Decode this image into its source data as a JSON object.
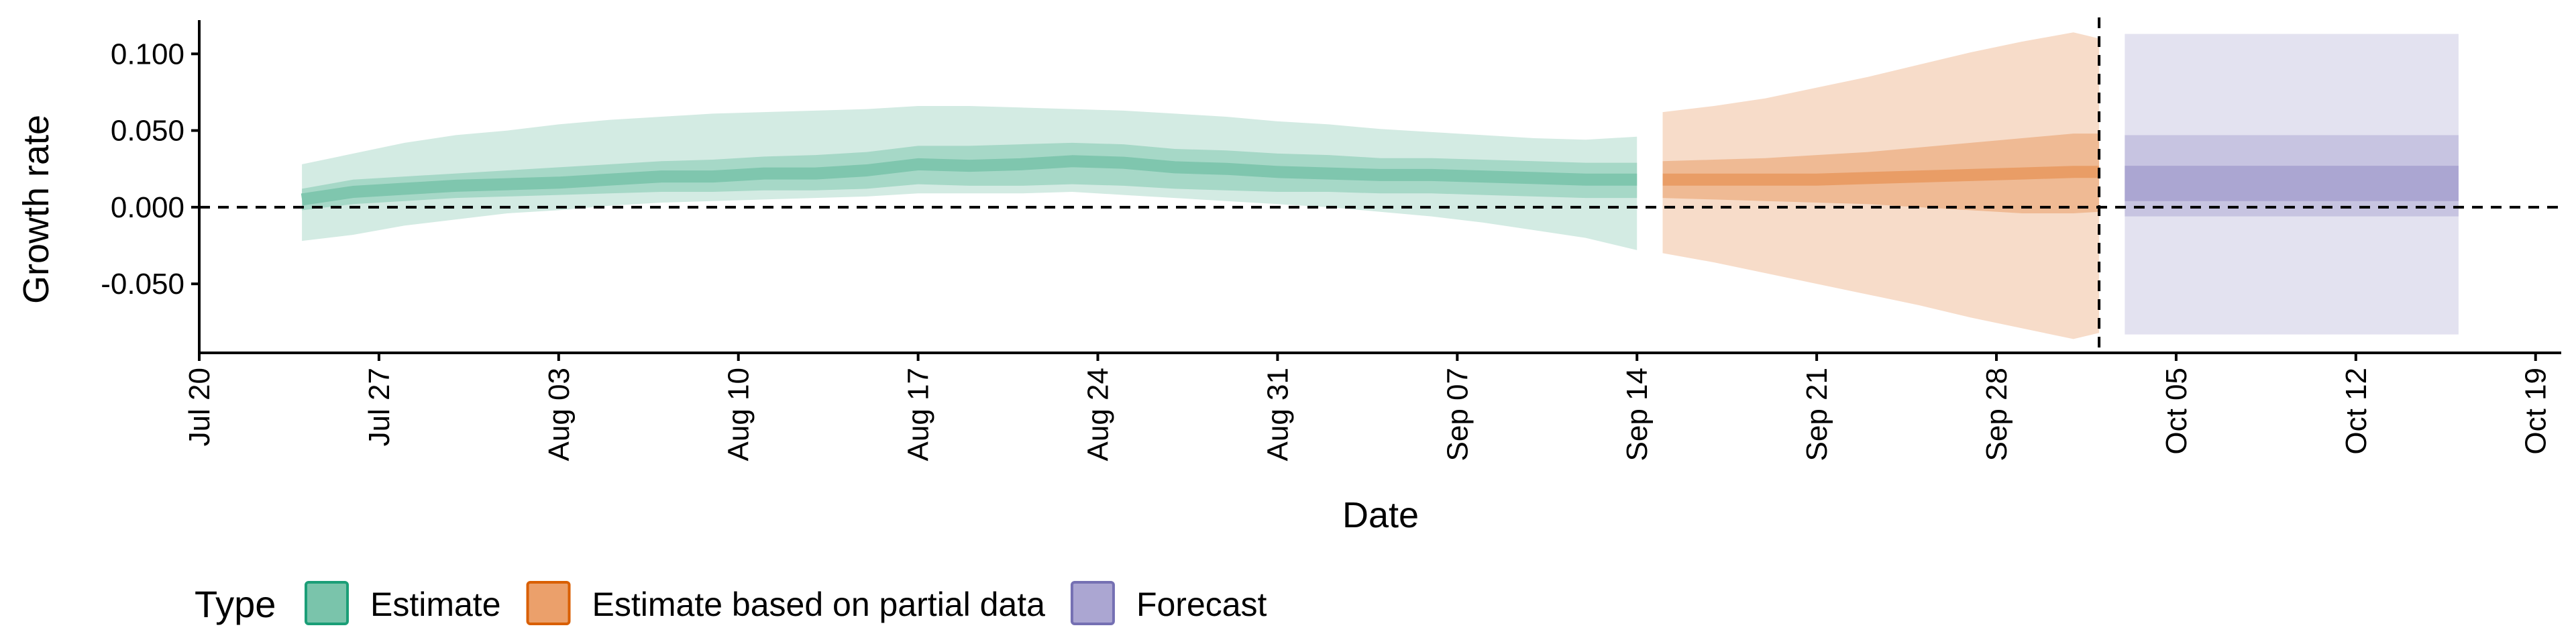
{
  "chart_data": {
    "type": "area",
    "xlabel": "Date",
    "ylabel": "Growth rate",
    "ylim": [
      -0.095,
      0.122
    ],
    "y_ticks": [
      {
        "value": 0.1,
        "label": "0.100"
      },
      {
        "value": 0.05,
        "label": "0.050"
      },
      {
        "value": 0.0,
        "label": "0.000"
      },
      {
        "value": -0.05,
        "label": "-0.050"
      }
    ],
    "xlim": [
      "2020-07-20",
      "2020-10-20"
    ],
    "x_ticks": [
      {
        "date": "2020-07-20",
        "label": "Jul 20"
      },
      {
        "date": "2020-07-27",
        "label": "Jul 27"
      },
      {
        "date": "2020-08-03",
        "label": "Aug 03"
      },
      {
        "date": "2020-08-10",
        "label": "Aug 10"
      },
      {
        "date": "2020-08-17",
        "label": "Aug 17"
      },
      {
        "date": "2020-08-24",
        "label": "Aug 24"
      },
      {
        "date": "2020-08-31",
        "label": "Aug 31"
      },
      {
        "date": "2020-09-07",
        "label": "Sep 07"
      },
      {
        "date": "2020-09-14",
        "label": "Sep 14"
      },
      {
        "date": "2020-09-21",
        "label": "Sep 21"
      },
      {
        "date": "2020-09-28",
        "label": "Sep 28"
      },
      {
        "date": "2020-10-05",
        "label": "Oct 05"
      },
      {
        "date": "2020-10-12",
        "label": "Oct 12"
      },
      {
        "date": "2020-10-19",
        "label": "Oct 19"
      }
    ],
    "reference_lines": {
      "horizontal_y": 0.0,
      "vertical_date": "2020-10-02",
      "style": "dashed"
    },
    "grid": false,
    "legend": {
      "title": "Type",
      "position": "bottom-left"
    },
    "series": [
      {
        "name": "Estimate",
        "color": "#1b9e77",
        "dates": [
          "2020-07-24",
          "2020-07-26",
          "2020-07-28",
          "2020-07-30",
          "2020-08-01",
          "2020-08-03",
          "2020-08-05",
          "2020-08-07",
          "2020-08-09",
          "2020-08-11",
          "2020-08-13",
          "2020-08-15",
          "2020-08-17",
          "2020-08-19",
          "2020-08-21",
          "2020-08-23",
          "2020-08-25",
          "2020-08-27",
          "2020-08-29",
          "2020-08-31",
          "2020-09-02",
          "2020-09-04",
          "2020-09-06",
          "2020-09-08",
          "2020-09-10",
          "2020-09-12",
          "2020-09-14"
        ],
        "median": [
          0.005,
          0.01,
          0.012,
          0.014,
          0.015,
          0.016,
          0.018,
          0.02,
          0.02,
          0.022,
          0.022,
          0.024,
          0.028,
          0.027,
          0.028,
          0.03,
          0.029,
          0.026,
          0.025,
          0.023,
          0.022,
          0.021,
          0.021,
          0.02,
          0.019,
          0.018,
          0.018
        ],
        "band_inner": {
          "lower": [
            -0.002,
            0.002,
            0.004,
            0.006,
            0.007,
            0.008,
            0.009,
            0.01,
            0.01,
            0.011,
            0.011,
            0.012,
            0.015,
            0.014,
            0.014,
            0.015,
            0.014,
            0.012,
            0.011,
            0.01,
            0.01,
            0.009,
            0.009,
            0.008,
            0.007,
            0.006,
            0.006
          ],
          "upper": [
            0.012,
            0.018,
            0.02,
            0.022,
            0.024,
            0.026,
            0.028,
            0.03,
            0.031,
            0.033,
            0.034,
            0.036,
            0.04,
            0.04,
            0.041,
            0.042,
            0.041,
            0.038,
            0.037,
            0.035,
            0.034,
            0.032,
            0.032,
            0.031,
            0.03,
            0.029,
            0.029
          ]
        },
        "band_outer": {
          "lower": [
            -0.022,
            -0.018,
            -0.012,
            -0.008,
            -0.004,
            -0.002,
            0.001,
            0.003,
            0.004,
            0.005,
            0.006,
            0.007,
            0.009,
            0.009,
            0.009,
            0.01,
            0.008,
            0.006,
            0.004,
            0.002,
            0.0,
            -0.003,
            -0.006,
            -0.01,
            -0.015,
            -0.02,
            -0.028
          ],
          "upper": [
            0.028,
            0.035,
            0.042,
            0.047,
            0.05,
            0.054,
            0.057,
            0.059,
            0.061,
            0.062,
            0.063,
            0.064,
            0.066,
            0.066,
            0.065,
            0.064,
            0.063,
            0.061,
            0.059,
            0.056,
            0.054,
            0.051,
            0.049,
            0.047,
            0.045,
            0.044,
            0.046
          ]
        }
      },
      {
        "name": "Estimate based on partial data",
        "color": "#d95f02",
        "dates": [
          "2020-09-15",
          "2020-09-17",
          "2020-09-19",
          "2020-09-21",
          "2020-09-23",
          "2020-09-25",
          "2020-09-27",
          "2020-09-29",
          "2020-10-01",
          "2020-10-02"
        ],
        "median": [
          0.018,
          0.018,
          0.018,
          0.018,
          0.019,
          0.02,
          0.021,
          0.022,
          0.023,
          0.023
        ],
        "band_inner": {
          "lower": [
            0.006,
            0.005,
            0.004,
            0.003,
            0.002,
            0.0,
            -0.002,
            -0.004,
            -0.004,
            -0.003
          ],
          "upper": [
            0.03,
            0.031,
            0.032,
            0.034,
            0.036,
            0.039,
            0.042,
            0.045,
            0.048,
            0.048
          ]
        },
        "band_outer": {
          "lower": [
            -0.03,
            -0.036,
            -0.043,
            -0.05,
            -0.057,
            -0.064,
            -0.072,
            -0.079,
            -0.086,
            -0.082
          ],
          "upper": [
            0.062,
            0.066,
            0.071,
            0.078,
            0.085,
            0.093,
            0.101,
            0.108,
            0.114,
            0.11
          ]
        }
      },
      {
        "name": "Forecast",
        "color": "#7570b3",
        "dates": [
          "2020-10-03",
          "2020-10-16"
        ],
        "median": [
          0.016,
          0.016
        ],
        "band_inner": {
          "lower": [
            0.004,
            0.004
          ],
          "upper": [
            0.027,
            0.027
          ]
        },
        "band_mid": {
          "lower": [
            -0.006,
            -0.006
          ],
          "upper": [
            0.047,
            0.047
          ]
        },
        "band_outer": {
          "lower": [
            -0.083,
            -0.083
          ],
          "upper": [
            0.113,
            0.113
          ]
        }
      }
    ]
  }
}
